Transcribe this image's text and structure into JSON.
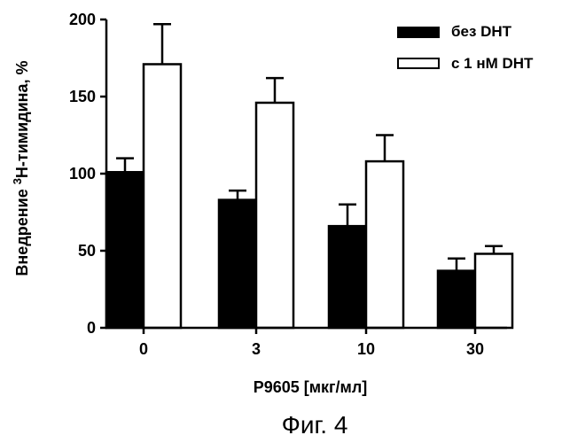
{
  "chart_data": {
    "type": "bar",
    "categories": [
      "0",
      "3",
      "10",
      "30"
    ],
    "series": [
      {
        "name": "без DHT",
        "color": "#000000",
        "values": [
          101,
          83,
          66,
          37
        ],
        "errors": [
          9,
          6,
          14,
          8
        ]
      },
      {
        "name": "с 1 нМ DHT",
        "color": "#ffffff",
        "values": [
          171,
          146,
          108,
          48
        ],
        "errors": [
          26,
          16,
          17,
          5
        ]
      }
    ],
    "xlabel": "P9605 [мкг/мл]",
    "ylabel_prefix": "Внедрение ",
    "ylabel_sup": "3",
    "ylabel_suffix": "H-тимидина, %",
    "ylim": [
      0,
      200
    ],
    "yticks": [
      "0",
      "50",
      "100",
      "150",
      "200"
    ],
    "legend_position": "top-right",
    "grid": false
  },
  "caption": "Фиг. 4"
}
